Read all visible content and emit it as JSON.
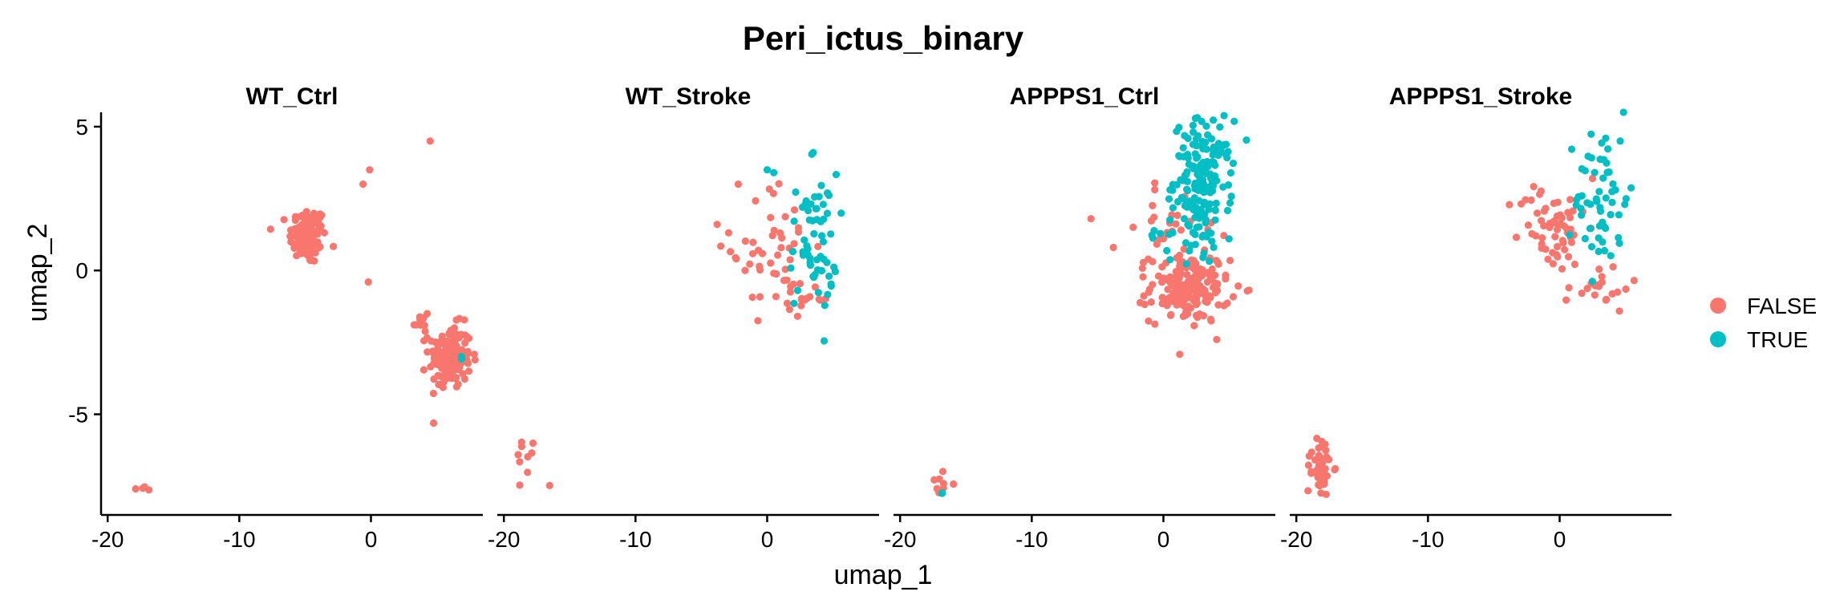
{
  "chart_data": {
    "type": "scatter",
    "title": "Peri_ictus_binary",
    "xlabel": "umap_1",
    "ylabel": "umap_2",
    "xlim": [
      -20.5,
      8.5
    ],
    "ylim": [
      -8.5,
      5.5
    ],
    "x_ticks": [
      -20,
      -10,
      0
    ],
    "x_tick_labels": [
      "-20",
      "-10",
      "0"
    ],
    "y_ticks": [
      5,
      0,
      -5
    ],
    "y_tick_labels": [
      "5",
      "0",
      "-5"
    ],
    "grid": false,
    "legend_position": "right",
    "legend": [
      {
        "label": "FALSE",
        "color": "#F8766D"
      },
      {
        "label": "TRUE",
        "color": "#00BFC4"
      }
    ],
    "facets": [
      {
        "name": "WT_Ctrl",
        "clusters": [
          {
            "group": "FALSE",
            "cx": -4.8,
            "cy": 1.2,
            "sx": 0.7,
            "sy": 0.5,
            "n": 110
          },
          {
            "group": "FALSE",
            "cx": 6.0,
            "cy": -3.0,
            "sx": 0.8,
            "sy": 0.55,
            "n": 150
          },
          {
            "group": "FALSE",
            "cx": 3.8,
            "cy": -1.8,
            "sx": 0.3,
            "sy": 0.3,
            "n": 12
          },
          {
            "group": "FALSE",
            "cx": -17.2,
            "cy": -7.6,
            "sx": 0.4,
            "sy": 0.15,
            "n": 4
          },
          {
            "group": "TRUE",
            "cx": 7.0,
            "cy": -3.0,
            "sx": 0.1,
            "sy": 0.1,
            "n": 2
          }
        ],
        "points": [
          {
            "group": "FALSE",
            "x": 4.5,
            "y": 4.5
          },
          {
            "group": "FALSE",
            "x": -0.1,
            "y": 3.5
          },
          {
            "group": "FALSE",
            "x": -0.6,
            "y": 3.0
          },
          {
            "group": "FALSE",
            "x": -0.2,
            "y": -0.4
          }
        ]
      },
      {
        "name": "WT_Stroke",
        "clusters": [
          {
            "group": "FALSE",
            "cx": 0.5,
            "cy": 0.8,
            "sx": 1.6,
            "sy": 1.1,
            "n": 45
          },
          {
            "group": "FALSE",
            "cx": 3.2,
            "cy": -1.0,
            "sx": 0.8,
            "sy": 0.3,
            "n": 15
          },
          {
            "group": "TRUE",
            "cx": 3.5,
            "cy": 1.0,
            "sx": 0.9,
            "sy": 1.2,
            "n": 60
          },
          {
            "group": "FALSE",
            "cx": -18.2,
            "cy": -6.8,
            "sx": 0.6,
            "sy": 0.6,
            "n": 10
          }
        ],
        "points": [
          {
            "group": "TRUE",
            "x": 0.0,
            "y": 3.5
          },
          {
            "group": "TRUE",
            "x": 0.5,
            "y": 3.4
          },
          {
            "group": "TRUE",
            "x": 3.5,
            "y": 4.1
          },
          {
            "group": "FALSE",
            "x": -3.8,
            "y": 1.6
          },
          {
            "group": "FALSE",
            "x": -2.2,
            "y": 3.0
          }
        ]
      },
      {
        "name": "APPPS1_Ctrl",
        "clusters": [
          {
            "group": "TRUE",
            "cx": 3.0,
            "cy": 3.2,
            "sx": 1.1,
            "sy": 1.0,
            "n": 160
          },
          {
            "group": "TRUE",
            "cx": 1.5,
            "cy": 1.2,
            "sx": 1.5,
            "sy": 0.5,
            "n": 25
          },
          {
            "group": "FALSE",
            "cx": 2.0,
            "cy": -0.6,
            "sx": 1.5,
            "sy": 0.6,
            "n": 170
          },
          {
            "group": "FALSE",
            "cx": 1.0,
            "cy": 1.6,
            "sx": 1.6,
            "sy": 0.6,
            "n": 25
          },
          {
            "group": "FALSE",
            "cx": -17.5,
            "cy": -7.6,
            "sx": 0.8,
            "sy": 0.25,
            "n": 8
          },
          {
            "group": "TRUE",
            "cx": -16.8,
            "cy": -7.8,
            "sx": 0.1,
            "sy": 0.05,
            "n": 2
          }
        ],
        "points": [
          {
            "group": "FALSE",
            "x": -5.5,
            "y": 1.8
          },
          {
            "group": "FALSE",
            "x": -3.8,
            "y": 0.8
          },
          {
            "group": "FALSE",
            "x": -2.3,
            "y": 1.5
          }
        ]
      },
      {
        "name": "APPPS1_Stroke",
        "clusters": [
          {
            "group": "FALSE",
            "cx": -0.5,
            "cy": 1.5,
            "sx": 1.3,
            "sy": 0.8,
            "n": 60
          },
          {
            "group": "FALSE",
            "cx": 3.0,
            "cy": -0.6,
            "sx": 1.2,
            "sy": 0.4,
            "n": 20
          },
          {
            "group": "TRUE",
            "cx": 3.2,
            "cy": 2.5,
            "sx": 1.0,
            "sy": 1.3,
            "n": 55
          },
          {
            "group": "FALSE",
            "cx": -18.2,
            "cy": -6.8,
            "sx": 0.5,
            "sy": 0.55,
            "n": 40
          }
        ],
        "points": [
          {
            "group": "TRUE",
            "x": 3.5,
            "y": 4.6
          },
          {
            "group": "TRUE",
            "x": 4.6,
            "y": 4.5
          },
          {
            "group": "FALSE",
            "x": 2.5,
            "y": 3.2
          }
        ]
      }
    ]
  }
}
